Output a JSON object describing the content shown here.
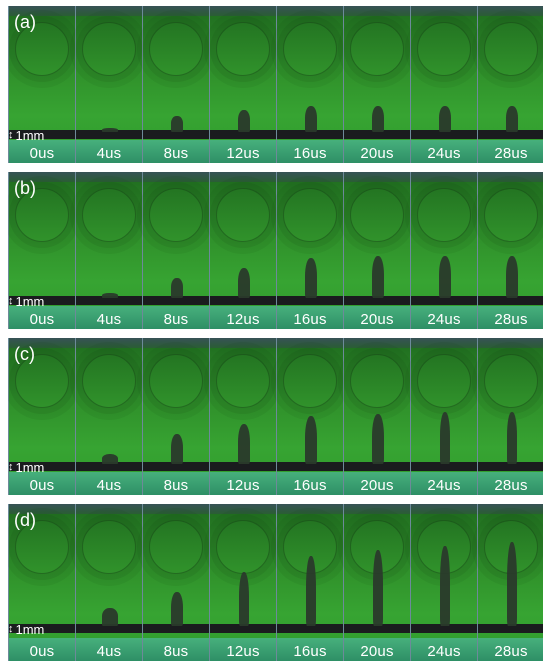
{
  "panels": [
    {
      "label": "(a)",
      "scale": "1mm",
      "times": [
        "0us",
        "4us",
        "8us",
        "12us",
        "16us",
        "20us",
        "24us",
        "28us"
      ]
    },
    {
      "label": "(b)",
      "scale": "1mm",
      "times": [
        "0us",
        "4us",
        "8us",
        "12us",
        "16us",
        "20us",
        "24us",
        "28us"
      ]
    },
    {
      "label": "(c)",
      "scale": "1mm",
      "times": [
        "0us",
        "4us",
        "8us",
        "12us",
        "16us",
        "20us",
        "24us",
        "28us"
      ]
    },
    {
      "label": "(d)",
      "scale": "1mm",
      "times": [
        "0us",
        "4us",
        "8us",
        "12us",
        "16us",
        "20us",
        "24us",
        "28us"
      ]
    }
  ],
  "colors": {
    "background": "#2f8f2a",
    "wire": "#1a1c1e",
    "label": "#ffffff"
  }
}
